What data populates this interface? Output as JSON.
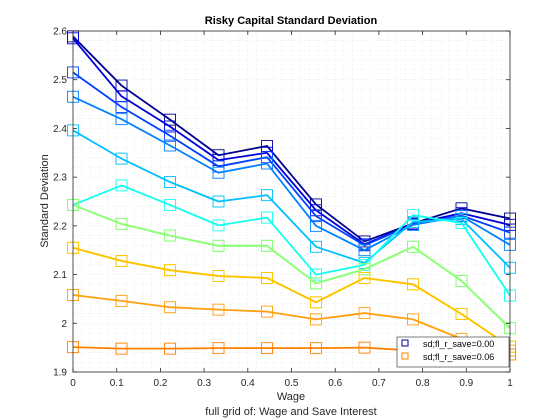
{
  "chart_data": {
    "type": "line",
    "title": "Risky Capital Standard Deviation",
    "xlabel": "Wage",
    "ylabel": "Standard Deviation",
    "caption": "full grid of: Wage and Save Interest",
    "xlim": [
      0,
      1
    ],
    "ylim": [
      1.9,
      2.6
    ],
    "grid": "minor dotted",
    "marker": "square",
    "x_ticks": [
      "0",
      "0.1",
      "0.2",
      "0.3",
      "0.4",
      "0.5",
      "0.6",
      "0.7",
      "0.8",
      "0.9",
      "1"
    ],
    "y_ticks": [
      "1.9",
      "2",
      "2.1",
      "2.2",
      "2.3",
      "2.4",
      "2.5",
      "2.6"
    ],
    "legend_position": "bottom-right",
    "x": [
      0,
      0.111,
      0.222,
      0.333,
      0.444,
      0.556,
      0.667,
      0.778,
      0.889,
      1.0
    ],
    "series": [
      {
        "name": "sd;fl_r_save=0.00",
        "color": "#00008F",
        "values": [
          2.589,
          2.488,
          2.418,
          2.345,
          2.364,
          2.244,
          2.168,
          2.205,
          2.236,
          2.215
        ]
      },
      {
        "name": "",
        "color": "#0000DF",
        "values": [
          2.585,
          2.466,
          2.404,
          2.335,
          2.35,
          2.232,
          2.162,
          2.204,
          2.226,
          2.202
        ]
      },
      {
        "name": "",
        "color": "#0040FF",
        "values": [
          2.515,
          2.444,
          2.385,
          2.322,
          2.341,
          2.22,
          2.16,
          2.203,
          2.221,
          2.186
        ]
      },
      {
        "name": "",
        "color": "#0080FF",
        "values": [
          2.465,
          2.419,
          2.365,
          2.309,
          2.328,
          2.2,
          2.15,
          2.202,
          2.22,
          2.161
        ]
      },
      {
        "name": "",
        "color": "#00C0FF",
        "values": [
          2.396,
          2.338,
          2.29,
          2.25,
          2.263,
          2.157,
          2.124,
          2.208,
          2.214,
          2.114
        ]
      },
      {
        "name": "",
        "color": "#10FFEF",
        "values": [
          2.243,
          2.283,
          2.243,
          2.201,
          2.217,
          2.1,
          2.12,
          2.222,
          2.206,
          2.057
        ]
      },
      {
        "name": "",
        "color": "#50FFAF",
        "values": [
          2.243,
          2.204,
          2.18,
          2.159,
          2.159,
          2.082,
          2.111,
          2.157,
          2.087,
          1.99
        ]
      },
      {
        "name": "",
        "color": "#90FF70",
        "values": [
          2.243,
          2.204,
          2.18,
          2.159,
          2.159,
          2.082,
          2.111,
          2.157,
          2.087,
          1.99
        ]
      },
      {
        "name": "",
        "color": "#FFFF00",
        "values": [
          2.155,
          2.128,
          2.109,
          2.097,
          2.093,
          2.043,
          2.093,
          2.08,
          2.019,
          1.952
        ]
      },
      {
        "name": "",
        "color": "#FFC000",
        "values": [
          2.155,
          2.128,
          2.109,
          2.097,
          2.093,
          2.043,
          2.093,
          2.08,
          2.019,
          1.952
        ]
      },
      {
        "name": "",
        "color": "#FF9F0F",
        "values": [
          2.058,
          2.046,
          2.033,
          2.028,
          2.024,
          2.008,
          2.021,
          2.008,
          1.968,
          1.944
        ]
      },
      {
        "name": "sd;fl_r_save=0.06",
        "color": "#FF8000",
        "values": [
          1.951,
          1.948,
          1.948,
          1.949,
          1.949,
          1.949,
          1.95,
          1.944,
          1.937,
          1.936
        ]
      }
    ]
  }
}
